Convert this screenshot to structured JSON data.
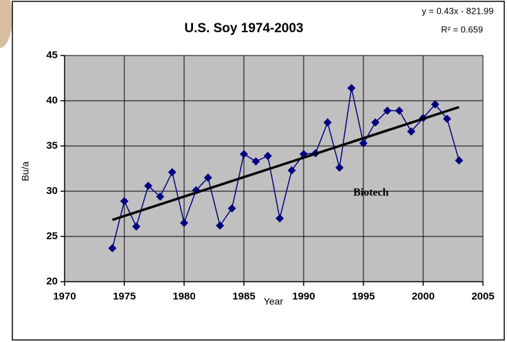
{
  "chart_data": {
    "type": "line",
    "title": "U.S. Soy 1974-2003",
    "equation": "y = 0.43x - 821.99",
    "r_squared": "R² = 0.659",
    "annotation": "Biotech",
    "x_label": "Year",
    "y_label": "Bu/a",
    "x": [
      1974,
      1975,
      1976,
      1977,
      1978,
      1979,
      1980,
      1981,
      1982,
      1983,
      1984,
      1985,
      1986,
      1987,
      1988,
      1989,
      1990,
      1991,
      1992,
      1993,
      1994,
      1995,
      1996,
      1997,
      1998,
      1999,
      2000,
      2001,
      2002,
      2003
    ],
    "series": [
      {
        "color": "#000080",
        "values": [
          23.7,
          28.9,
          26.1,
          30.6,
          29.4,
          32.1,
          26.5,
          30.1,
          31.5,
          26.2,
          28.1,
          34.1,
          33.3,
          33.9,
          27.0,
          32.3,
          34.1,
          34.2,
          37.6,
          32.6,
          41.4,
          35.3,
          37.6,
          38.9,
          38.9,
          36.6,
          38.1,
          39.6,
          38.0,
          33.4
        ]
      }
    ],
    "trendline": {
      "color": "#000000",
      "x": [
        1974,
        2003
      ],
      "values": [
        26.83,
        39.3
      ]
    },
    "xlim": [
      1970,
      2005
    ],
    "xticks": [
      1970,
      1975,
      1980,
      1985,
      1990,
      1995,
      2000,
      2005
    ],
    "ylim": [
      20,
      45
    ],
    "yticks": [
      20,
      25,
      30,
      35,
      40,
      45
    ],
    "grid": true,
    "plot_background": "#c0c0c0"
  }
}
